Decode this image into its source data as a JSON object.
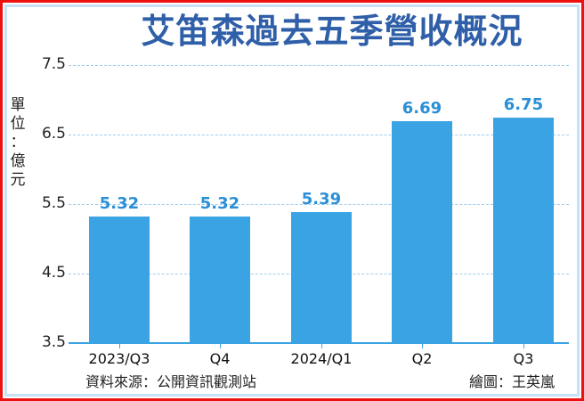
{
  "title": "艾笛森過去五季營收概況",
  "unit_label": "單位：億元",
  "unit_chars": [
    "單",
    "位",
    "：",
    "億",
    "元"
  ],
  "source": "資料來源：公開資訊觀測站",
  "credit": "繪圖：王英嵐",
  "colors": {
    "bar": "#3aa3e4",
    "bar_label": "#2b8fd6",
    "title": "#2f5fa8",
    "gridline": "#9ecdee",
    "outer_border": "#ee1111",
    "inner_border": "#c7e1f4"
  },
  "y_ticks": [
    "7.5",
    "6.5",
    "5.5",
    "4.5",
    "3.5"
  ],
  "chart_data": {
    "type": "bar",
    "title": "艾笛森過去五季營收概況",
    "xlabel": "",
    "ylabel": "單位：億元",
    "categories": [
      "2023/Q3",
      "Q4",
      "2024/Q1",
      "Q2",
      "Q3"
    ],
    "values": [
      5.32,
      5.32,
      5.39,
      6.69,
      6.75
    ],
    "data_labels": [
      "5.32",
      "5.32",
      "5.39",
      "6.69",
      "6.75"
    ],
    "ylim": [
      3.5,
      7.5
    ],
    "yticks": [
      3.5,
      4.5,
      5.5,
      6.5,
      7.5
    ],
    "grid": "horizontal dashed",
    "legend": "none"
  }
}
